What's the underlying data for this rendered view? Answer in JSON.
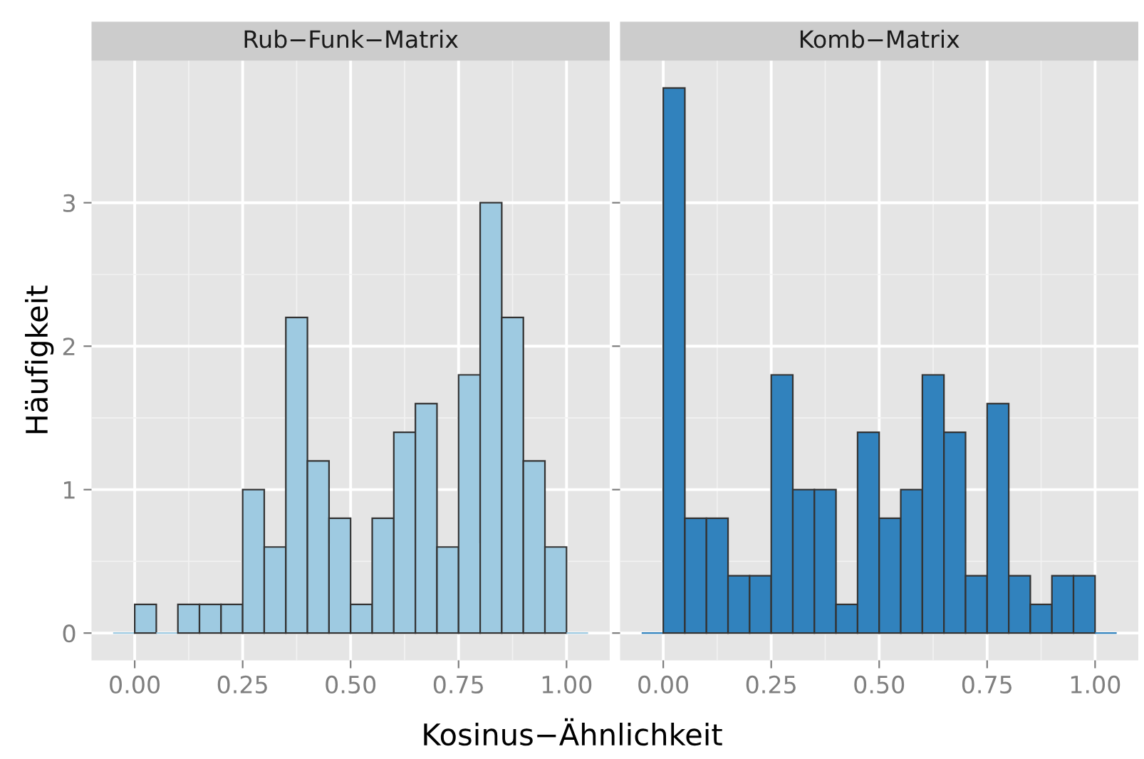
{
  "chart_data": [
    {
      "type": "histogram",
      "title": "Rub−Funk−Matrix",
      "ylabel": "Häufigkeit",
      "xlabel": "Kosinus−Ähnlichkeit",
      "color": "#9ecae1",
      "bins": [
        -0.05,
        0,
        0.05,
        0.1,
        0.15,
        0.2,
        0.25,
        0.3,
        0.35,
        0.4,
        0.45,
        0.5,
        0.55,
        0.6,
        0.65,
        0.7,
        0.75,
        0.8,
        0.85,
        0.9,
        0.95,
        1.0,
        1.05
      ],
      "values": [
        0,
        0.2,
        0,
        0.2,
        0.2,
        0.2,
        1.0,
        0.6,
        2.2,
        1.2,
        0.8,
        0.2,
        0.8,
        1.4,
        1.6,
        0.6,
        1.8,
        3.0,
        2.2,
        1.2,
        0.6,
        0
      ],
      "xlim": [
        -0.1,
        1.1
      ],
      "ylim": [
        -0.19,
        3.99
      ],
      "xticks": [
        {
          "value": 0,
          "label": "0.00"
        },
        {
          "value": 0.25,
          "label": "0.25"
        },
        {
          "value": 0.5,
          "label": "0.50"
        },
        {
          "value": 0.75,
          "label": "0.75"
        },
        {
          "value": 1,
          "label": "1.00"
        }
      ],
      "yticks": [
        0,
        1,
        2,
        3
      ],
      "grid": true
    },
    {
      "type": "histogram",
      "title": "Komb−Matrix",
      "color": "#3182bd",
      "bins": [
        -0.05,
        0,
        0.05,
        0.1,
        0.15,
        0.2,
        0.25,
        0.3,
        0.35,
        0.4,
        0.45,
        0.5,
        0.55,
        0.6,
        0.65,
        0.7,
        0.75,
        0.8,
        0.85,
        0.9,
        0.95,
        1.0,
        1.05
      ],
      "values": [
        0,
        3.8,
        0.8,
        0.8,
        0.4,
        0.4,
        1.8,
        1.0,
        1.0,
        0.2,
        1.4,
        0.8,
        1.0,
        1.8,
        1.4,
        0.4,
        1.6,
        0.4,
        0.2,
        0.4,
        0.4,
        0
      ],
      "xlim": [
        -0.1,
        1.1
      ],
      "ylim": [
        -0.19,
        3.99
      ],
      "xticks": [
        {
          "value": 0,
          "label": "0.00"
        },
        {
          "value": 0.25,
          "label": "0.25"
        },
        {
          "value": 0.5,
          "label": "0.50"
        },
        {
          "value": 0.75,
          "label": "0.75"
        },
        {
          "value": 1,
          "label": "1.00"
        }
      ],
      "yticks": [
        0,
        1,
        2,
        3
      ],
      "grid": true,
      "tick_labels": "x"
    }
  ]
}
